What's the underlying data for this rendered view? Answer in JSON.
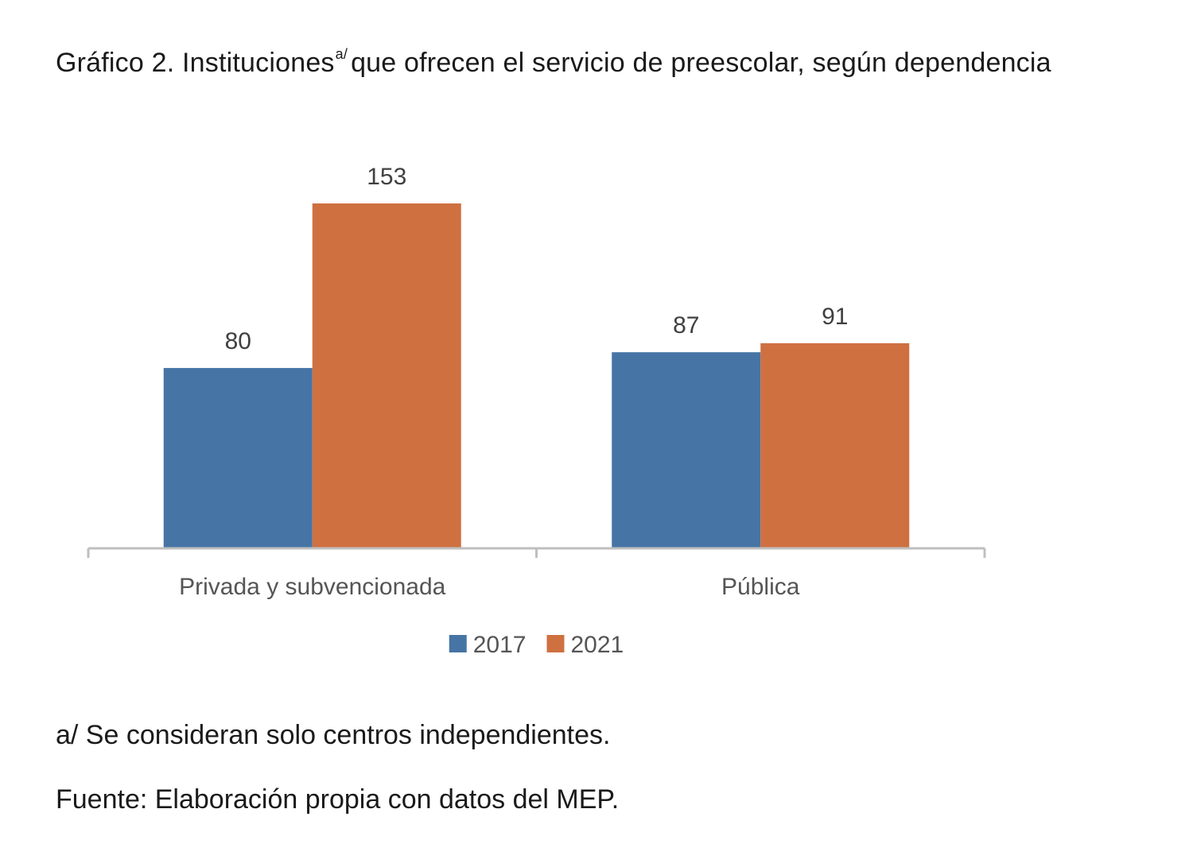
{
  "title": {
    "text_before": "Gráfico 2. Instituciones",
    "superscript": "a/",
    "text_after": "que ofrecen el servicio de preescolar, según dependencia"
  },
  "chart_data": {
    "type": "bar",
    "categories": [
      "Privada y subvencionada",
      "Pública"
    ],
    "series": [
      {
        "name": "2017",
        "values": [
          80,
          87
        ],
        "color": "#4674a5"
      },
      {
        "name": "2021",
        "values": [
          153,
          91
        ],
        "color": "#cf7041"
      }
    ],
    "ylim": [
      0,
      153
    ],
    "legend_position": "bottom",
    "grid": false,
    "data_labels": true
  },
  "notes": {
    "footnote": "a/ Se consideran solo centros independientes.",
    "source": "Fuente: Elaboración propia con datos del MEP."
  }
}
